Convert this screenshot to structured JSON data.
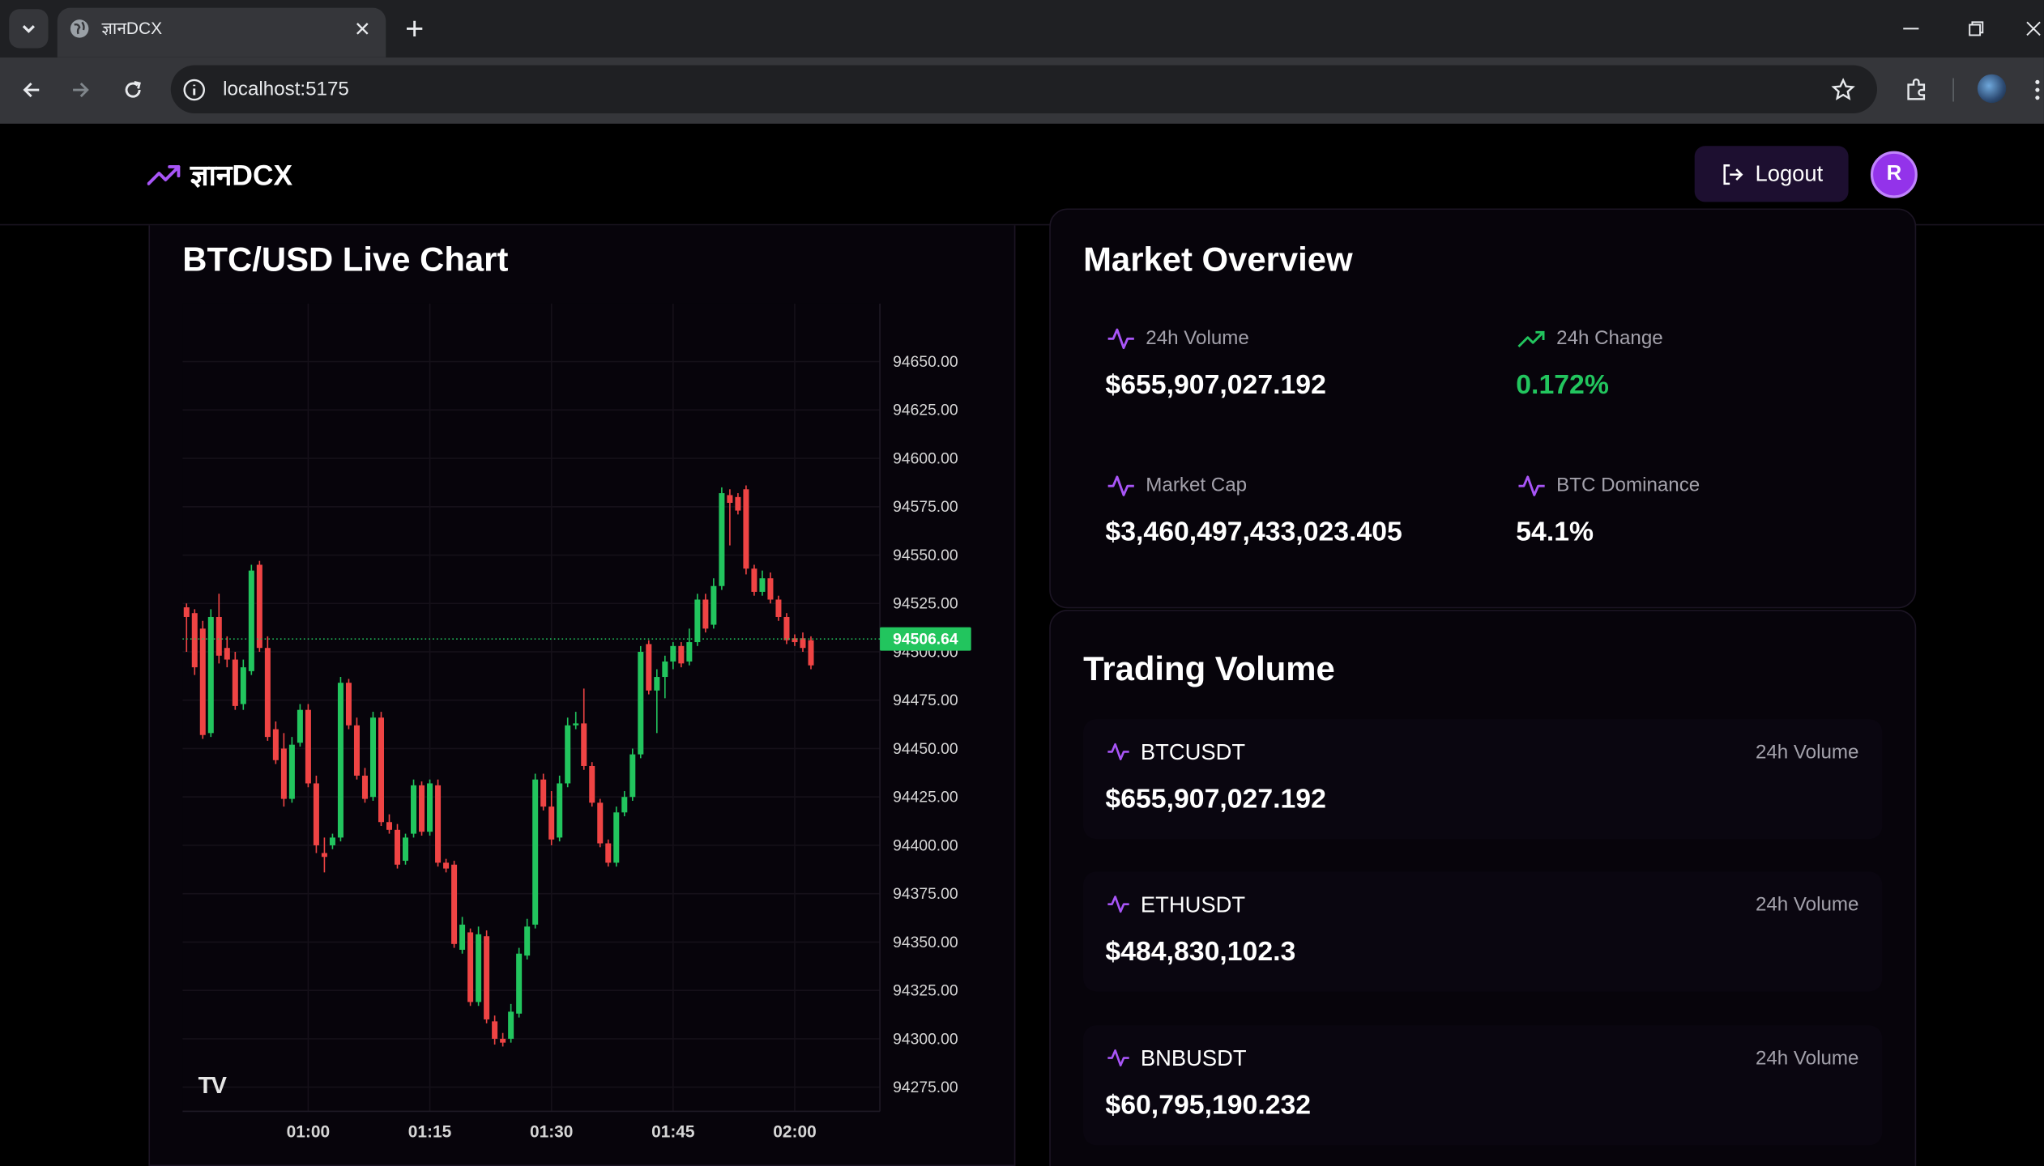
{
  "browser": {
    "tab_title": "ज्ञानDCX",
    "url": "localhost:5175"
  },
  "app": {
    "logo_text": "ज्ञानDCX",
    "logout_label": "Logout",
    "avatar_initial": "R",
    "accent": "#9333ea"
  },
  "chart_panel": {
    "title": "BTC/USD Live Chart",
    "current_price_label": "94506.64"
  },
  "chart_data": {
    "type": "candlestick",
    "ylim": [
      94262.5,
      94680
    ],
    "y_ticks": [
      "94650.00",
      "94625.00",
      "94600.00",
      "94575.00",
      "94550.00",
      "94525.00",
      "94500.00",
      "94475.00",
      "94450.00",
      "94425.00",
      "94400.00",
      "94375.00",
      "94350.00",
      "94325.00",
      "94300.00",
      "94275.00"
    ],
    "x_ticks": [
      "01:00",
      "01:15",
      "01:30",
      "01:45",
      "02:00"
    ],
    "x_tick_minutes": [
      60,
      75,
      90,
      105,
      120
    ],
    "xlim_minutes": [
      44.5,
      130.5
    ],
    "last_price": 94506.64,
    "up_color": "#22c55e",
    "down_color": "#ef4444",
    "candles": [
      {
        "t": 45,
        "o": 94523,
        "h": 94525,
        "c": 94518,
        "l": 94500
      },
      {
        "t": 46,
        "o": 94520,
        "h": 94522,
        "c": 94492,
        "l": 94488
      },
      {
        "t": 47,
        "o": 94512,
        "h": 94516,
        "c": 94457,
        "l": 94455
      },
      {
        "t": 48,
        "o": 94458,
        "h": 94522,
        "c": 94518,
        "l": 94456
      },
      {
        "t": 49,
        "o": 94518,
        "h": 94530,
        "c": 94498,
        "l": 94494
      },
      {
        "t": 50,
        "o": 94502,
        "h": 94508,
        "c": 94496,
        "l": 94492
      },
      {
        "t": 51,
        "o": 94496,
        "h": 94500,
        "c": 94472,
        "l": 94470
      },
      {
        "t": 52,
        "o": 94473,
        "h": 94496,
        "c": 94492,
        "l": 94470
      },
      {
        "t": 53,
        "o": 94490,
        "h": 94545,
        "c": 94542,
        "l": 94488
      },
      {
        "t": 54,
        "o": 94545,
        "h": 94547,
        "c": 94502,
        "l": 94500
      },
      {
        "t": 55,
        "o": 94502,
        "h": 94508,
        "c": 94456,
        "l": 94454
      },
      {
        "t": 56,
        "o": 94460,
        "h": 94464,
        "c": 94444,
        "l": 94442
      },
      {
        "t": 57,
        "o": 94450,
        "h": 94458,
        "c": 94424,
        "l": 94420
      },
      {
        "t": 58,
        "o": 94424,
        "h": 94456,
        "c": 94452,
        "l": 94422
      },
      {
        "t": 59,
        "o": 94453,
        "h": 94473,
        "c": 94470,
        "l": 94451
      },
      {
        "t": 60,
        "o": 94470,
        "h": 94473,
        "c": 94432,
        "l": 94430
      },
      {
        "t": 61,
        "o": 94432,
        "h": 94436,
        "c": 94400,
        "l": 94396
      },
      {
        "t": 62,
        "o": 94396,
        "h": 94404,
        "c": 94394,
        "l": 94386
      },
      {
        "t": 63,
        "o": 94400,
        "h": 94406,
        "c": 94404,
        "l": 94398
      },
      {
        "t": 64,
        "o": 94404,
        "h": 94487,
        "c": 94484,
        "l": 94402
      },
      {
        "t": 65,
        "o": 94484,
        "h": 94486,
        "c": 94462,
        "l": 94460
      },
      {
        "t": 66,
        "o": 94462,
        "h": 94466,
        "c": 94436,
        "l": 94434
      },
      {
        "t": 67,
        "o": 94436,
        "h": 94440,
        "c": 94424,
        "l": 94422
      },
      {
        "t": 68,
        "o": 94425,
        "h": 94469,
        "c": 94466,
        "l": 94423
      },
      {
        "t": 69,
        "o": 94466,
        "h": 94469,
        "c": 94412,
        "l": 94410
      },
      {
        "t": 70,
        "o": 94412,
        "h": 94416,
        "c": 94408,
        "l": 94406
      },
      {
        "t": 71,
        "o": 94408,
        "h": 94411,
        "c": 94390,
        "l": 94388
      },
      {
        "t": 72,
        "o": 94392,
        "h": 94406,
        "c": 94404,
        "l": 94390
      },
      {
        "t": 73,
        "o": 94406,
        "h": 94434,
        "c": 94431,
        "l": 94404
      },
      {
        "t": 74,
        "o": 94431,
        "h": 94433,
        "c": 94407,
        "l": 94405
      },
      {
        "t": 75,
        "o": 94407,
        "h": 94434,
        "c": 94432,
        "l": 94405
      },
      {
        "t": 76,
        "o": 94431,
        "h": 94434,
        "c": 94391,
        "l": 94389
      },
      {
        "t": 77,
        "o": 94391,
        "h": 94393,
        "c": 94388,
        "l": 94386
      },
      {
        "t": 78,
        "o": 94390,
        "h": 94392,
        "c": 94349,
        "l": 94347
      },
      {
        "t": 79,
        "o": 94346,
        "h": 94363,
        "c": 94359,
        "l": 94344
      },
      {
        "t": 80,
        "o": 94355,
        "h": 94357,
        "c": 94319,
        "l": 94317
      },
      {
        "t": 81,
        "o": 94319,
        "h": 94358,
        "c": 94354,
        "l": 94317
      },
      {
        "t": 82,
        "o": 94353,
        "h": 94356,
        "c": 94310,
        "l": 94308
      },
      {
        "t": 83,
        "o": 94309,
        "h": 94312,
        "c": 94300,
        "l": 94297
      },
      {
        "t": 84,
        "o": 94300,
        "h": 94303,
        "c": 94298,
        "l": 94296
      },
      {
        "t": 85,
        "o": 94300,
        "h": 94318,
        "c": 94314,
        "l": 94298
      },
      {
        "t": 86,
        "o": 94313,
        "h": 94347,
        "c": 94344,
        "l": 94311
      },
      {
        "t": 87,
        "o": 94343,
        "h": 94362,
        "c": 94358,
        "l": 94341
      },
      {
        "t": 88,
        "o": 94359,
        "h": 94437,
        "c": 94434,
        "l": 94357
      },
      {
        "t": 89,
        "o": 94434,
        "h": 94437,
        "c": 94420,
        "l": 94418
      },
      {
        "t": 90,
        "o": 94420,
        "h": 94428,
        "c": 94403,
        "l": 94400
      },
      {
        "t": 91,
        "o": 94404,
        "h": 94436,
        "c": 94432,
        "l": 94402
      },
      {
        "t": 92,
        "o": 94432,
        "h": 94466,
        "c": 94462,
        "l": 94430
      },
      {
        "t": 93,
        "o": 94462,
        "h": 94469,
        "c": 94463,
        "l": 94460
      },
      {
        "t": 94,
        "o": 94463,
        "h": 94481,
        "c": 94441,
        "l": 94439
      },
      {
        "t": 95,
        "o": 94441,
        "h": 94443,
        "c": 94422,
        "l": 94420
      },
      {
        "t": 96,
        "o": 94422,
        "h": 94424,
        "c": 94401,
        "l": 94399
      },
      {
        "t": 97,
        "o": 94401,
        "h": 94403,
        "c": 94391,
        "l": 94389
      },
      {
        "t": 98,
        "o": 94391,
        "h": 94420,
        "c": 94417,
        "l": 94389
      },
      {
        "t": 99,
        "o": 94417,
        "h": 94428,
        "c": 94425,
        "l": 94415
      },
      {
        "t": 100,
        "o": 94425,
        "h": 94450,
        "c": 94447,
        "l": 94423
      },
      {
        "t": 101,
        "o": 94447,
        "h": 94503,
        "c": 94500,
        "l": 94445
      },
      {
        "t": 102,
        "o": 94504,
        "h": 94506,
        "c": 94480,
        "l": 94478
      },
      {
        "t": 103,
        "o": 94480,
        "h": 94491,
        "c": 94487,
        "l": 94458
      },
      {
        "t": 104,
        "o": 94487,
        "h": 94498,
        "c": 94495,
        "l": 94476
      },
      {
        "t": 105,
        "o": 94495,
        "h": 94505,
        "c": 94503,
        "l": 94491
      },
      {
        "t": 106,
        "o": 94503,
        "h": 94505,
        "c": 94494,
        "l": 94492
      },
      {
        "t": 107,
        "o": 94495,
        "h": 94512,
        "c": 94505,
        "l": 94493
      },
      {
        "t": 108,
        "o": 94505,
        "h": 94530,
        "c": 94527,
        "l": 94503
      },
      {
        "t": 109,
        "o": 94527,
        "h": 94530,
        "c": 94512,
        "l": 94510
      },
      {
        "t": 110,
        "o": 94514,
        "h": 94538,
        "c": 94534,
        "l": 94512
      },
      {
        "t": 111,
        "o": 94534,
        "h": 94585,
        "c": 94582,
        "l": 94532
      },
      {
        "t": 112,
        "o": 94581,
        "h": 94584,
        "c": 94577,
        "l": 94555
      },
      {
        "t": 113,
        "o": 94580,
        "h": 94582,
        "c": 94573,
        "l": 94571
      },
      {
        "t": 114,
        "o": 94584,
        "h": 94586,
        "c": 94543,
        "l": 94540
      },
      {
        "t": 115,
        "o": 94543,
        "h": 94545,
        "c": 94531,
        "l": 94529
      },
      {
        "t": 116,
        "o": 94531,
        "h": 94542,
        "c": 94538,
        "l": 94529
      },
      {
        "t": 117,
        "o": 94538,
        "h": 94541,
        "c": 94527,
        "l": 94525
      },
      {
        "t": 118,
        "o": 94527,
        "h": 94529,
        "c": 94518,
        "l": 94516
      },
      {
        "t": 119,
        "o": 94518,
        "h": 94520,
        "c": 94506,
        "l": 94504
      },
      {
        "t": 120,
        "o": 94507,
        "h": 94509,
        "c": 94505,
        "l": 94503
      },
      {
        "t": 121,
        "o": 94507,
        "h": 94510,
        "c": 94502,
        "l": 94500
      },
      {
        "t": 122,
        "o": 94506,
        "h": 94508,
        "c": 94493,
        "l": 94491
      }
    ]
  },
  "market_overview": {
    "title": "Market Overview",
    "stats": [
      {
        "label": "24h Volume",
        "value": "$655,907,027.192"
      },
      {
        "label": "24h Change",
        "value": "0.172%"
      },
      {
        "label": "Market Cap",
        "value": "$3,460,497,433,023.405"
      },
      {
        "label": "BTC Dominance",
        "value": "54.1%"
      }
    ],
    "positive_color": "#22c55e"
  },
  "trading_volume": {
    "title": "Trading Volume",
    "items": [
      {
        "symbol": "BTCUSDT",
        "caption": "24h Volume",
        "value": "$655,907,027.192"
      },
      {
        "symbol": "ETHUSDT",
        "caption": "24h Volume",
        "value": "$484,830,102.3"
      },
      {
        "symbol": "BNBUSDT",
        "caption": "24h Volume",
        "value": "$60,795,190.232"
      }
    ]
  }
}
